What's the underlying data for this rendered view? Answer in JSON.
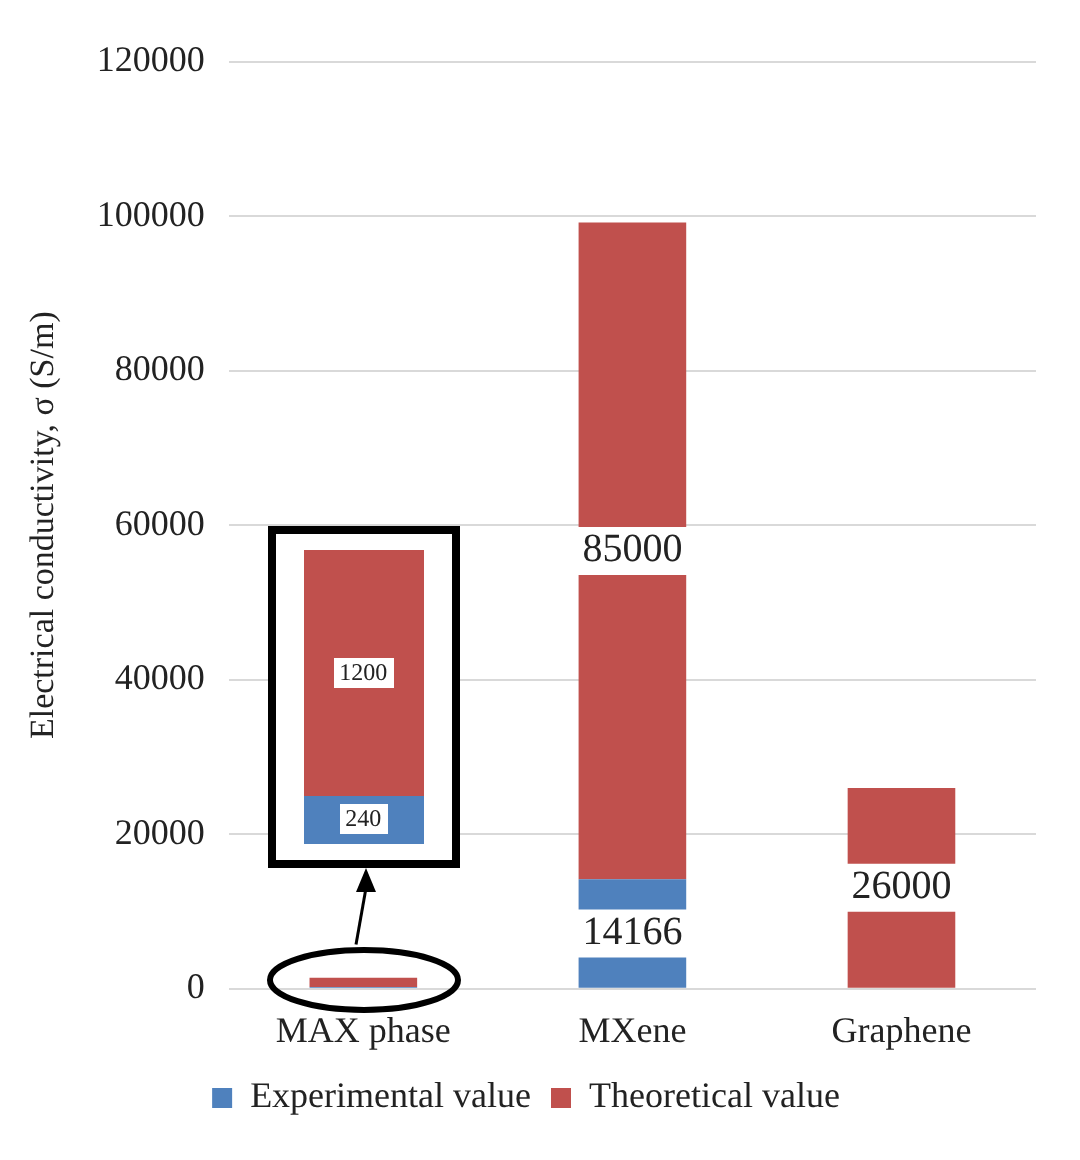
{
  "chart_data": {
    "type": "bar",
    "ylabel": "Electrical conductivity, σ (S/m)",
    "categories": [
      "MAX phase",
      "MXene",
      "Graphene"
    ],
    "stacked": true,
    "series": [
      {
        "name": "Experimental value",
        "color": "#4f81bd",
        "values": [
          240,
          14166,
          null
        ],
        "value_labels": [
          null,
          "14166",
          null
        ]
      },
      {
        "name": "Theoretical value",
        "color": "#c0504d",
        "values": [
          1200,
          85000,
          26000
        ],
        "value_labels": [
          null,
          "85000",
          "26000"
        ]
      }
    ],
    "annotations": [
      "240",
      "1200"
    ],
    "ylim": [
      0,
      120000
    ],
    "yticks": [
      0,
      20000,
      40000,
      60000,
      80000,
      100000,
      120000
    ],
    "grid": "y",
    "legend": "bottom"
  }
}
